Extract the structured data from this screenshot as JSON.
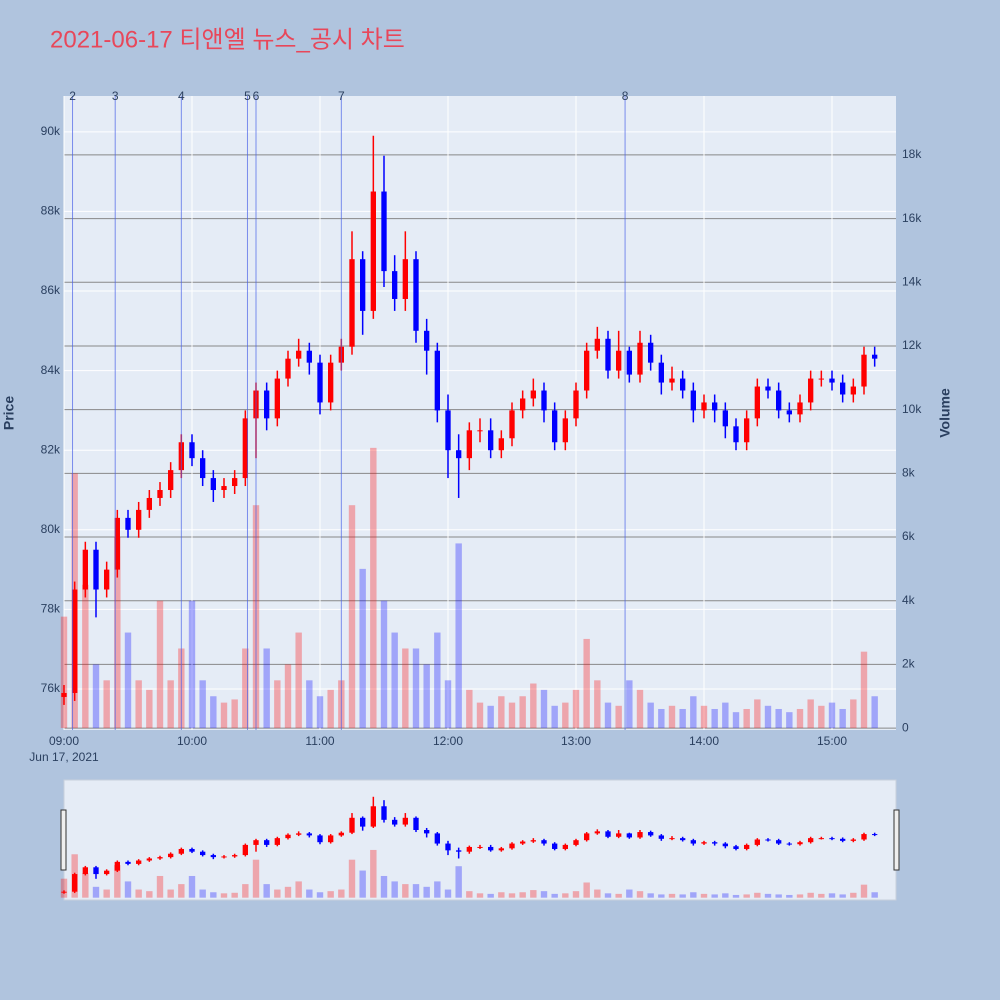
{
  "chart_data": {
    "type": "candlestick",
    "title": "2021-06-17 티앤엘 뉴스_공시 차트",
    "y_label": "Price",
    "y2_label": "Volume",
    "x_date_label": "Jun 17, 2021",
    "increasing_color": "#ff0000",
    "decreasing_color": "#0000ff",
    "x": [
      "2021-06-17 09:00",
      "2021-06-17 09:05",
      "2021-06-17 09:10",
      "2021-06-17 09:15",
      "2021-06-17 09:20",
      "2021-06-17 09:25",
      "2021-06-17 09:30",
      "2021-06-17 09:35",
      "2021-06-17 09:40",
      "2021-06-17 09:45",
      "2021-06-17 09:50",
      "2021-06-17 09:55",
      "2021-06-17 10:00",
      "2021-06-17 10:05",
      "2021-06-17 10:10",
      "2021-06-17 10:15",
      "2021-06-17 10:20",
      "2021-06-17 10:25",
      "2021-06-17 10:30",
      "2021-06-17 10:35",
      "2021-06-17 10:40",
      "2021-06-17 10:45",
      "2021-06-17 10:50",
      "2021-06-17 10:55",
      "2021-06-17 11:00",
      "2021-06-17 11:05",
      "2021-06-17 11:10",
      "2021-06-17 11:15",
      "2021-06-17 11:20",
      "2021-06-17 11:25",
      "2021-06-17 11:30",
      "2021-06-17 11:35",
      "2021-06-17 11:40",
      "2021-06-17 11:45",
      "2021-06-17 11:50",
      "2021-06-17 11:55",
      "2021-06-17 12:00",
      "2021-06-17 12:05",
      "2021-06-17 12:10",
      "2021-06-17 12:15",
      "2021-06-17 12:20",
      "2021-06-17 12:25",
      "2021-06-17 12:30",
      "2021-06-17 12:35",
      "2021-06-17 12:40",
      "2021-06-17 12:45",
      "2021-06-17 12:50",
      "2021-06-17 12:55",
      "2021-06-17 13:00",
      "2021-06-17 13:05",
      "2021-06-17 13:10",
      "2021-06-17 13:15",
      "2021-06-17 13:20",
      "2021-06-17 13:25",
      "2021-06-17 13:30",
      "2021-06-17 13:35",
      "2021-06-17 13:40",
      "2021-06-17 13:45",
      "2021-06-17 13:50",
      "2021-06-17 13:55",
      "2021-06-17 14:00",
      "2021-06-17 14:05",
      "2021-06-17 14:10",
      "2021-06-17 14:15",
      "2021-06-17 14:20",
      "2021-06-17 14:25",
      "2021-06-17 14:30",
      "2021-06-17 14:35",
      "2021-06-17 14:40",
      "2021-06-17 14:45",
      "2021-06-17 14:50",
      "2021-06-17 14:55",
      "2021-06-17 15:00",
      "2021-06-17 15:05",
      "2021-06-17 15:10",
      "2021-06-17 15:15",
      "2021-06-17 15:20"
    ],
    "open": [
      75800,
      75900,
      78500,
      79500,
      78500,
      79000,
      80300,
      80000,
      80500,
      80800,
      81000,
      81500,
      82200,
      81800,
      81300,
      81000,
      81100,
      81300,
      82800,
      83500,
      82800,
      83800,
      84300,
      84500,
      84200,
      83200,
      84200,
      84600,
      86800,
      85500,
      88500,
      86500,
      85800,
      86800,
      85000,
      84500,
      83000,
      82000,
      81800,
      82500,
      82500,
      82000,
      82300,
      83000,
      83300,
      83500,
      83000,
      82200,
      82800,
      83500,
      84500,
      84800,
      84000,
      84500,
      83900,
      84700,
      84200,
      83700,
      83800,
      83500,
      83000,
      83200,
      83000,
      82600,
      82200,
      82800,
      83600,
      83500,
      83000,
      82900,
      83200,
      83800,
      83800,
      83700,
      83400,
      83600,
      84400
    ],
    "high": [
      76100,
      78700,
      79700,
      79700,
      79200,
      80500,
      80500,
      80700,
      81000,
      81200,
      81700,
      82400,
      82400,
      82000,
      81500,
      81300,
      81500,
      83000,
      83700,
      83700,
      84000,
      84500,
      84800,
      84700,
      84400,
      84400,
      84800,
      87500,
      87000,
      89900,
      89400,
      86900,
      87500,
      87000,
      85300,
      84700,
      83400,
      82400,
      82700,
      82800,
      82800,
      82500,
      83200,
      83500,
      83800,
      83700,
      83200,
      83000,
      83700,
      84700,
      85100,
      85000,
      85000,
      84600,
      85000,
      84900,
      84400,
      84100,
      84000,
      83700,
      83400,
      83400,
      83200,
      82800,
      83000,
      83800,
      83800,
      83700,
      83200,
      83400,
      84000,
      84000,
      84000,
      83900,
      83800,
      84600,
      84600
    ],
    "low": [
      75600,
      75700,
      78300,
      77800,
      78300,
      78800,
      79800,
      79800,
      80300,
      80600,
      80800,
      81300,
      81600,
      81100,
      80700,
      80800,
      80900,
      81100,
      81800,
      82500,
      82600,
      83600,
      84100,
      83900,
      82900,
      83000,
      84000,
      84400,
      84900,
      85300,
      86100,
      85500,
      85500,
      84700,
      83900,
      82700,
      81300,
      80800,
      81500,
      82200,
      81800,
      81800,
      82100,
      82800,
      83100,
      82700,
      82000,
      82000,
      82600,
      83300,
      84300,
      83800,
      83800,
      83700,
      83700,
      84000,
      83400,
      83500,
      83300,
      82700,
      82800,
      82700,
      82300,
      82000,
      82000,
      82600,
      83300,
      82800,
      82700,
      82700,
      83000,
      83600,
      83500,
      83200,
      83200,
      83400,
      84100
    ],
    "close": [
      75900,
      78500,
      79500,
      78500,
      79000,
      80300,
      80000,
      80500,
      80800,
      81000,
      81500,
      82200,
      81800,
      81300,
      81000,
      81100,
      81300,
      82800,
      83500,
      82800,
      83800,
      84300,
      84500,
      84200,
      83200,
      84200,
      84600,
      86800,
      85500,
      88500,
      86500,
      85800,
      86800,
      85000,
      84500,
      83000,
      82000,
      81800,
      82500,
      82500,
      82000,
      82300,
      83000,
      83300,
      83500,
      83000,
      82200,
      82800,
      83500,
      84500,
      84800,
      84000,
      84500,
      83900,
      84700,
      84200,
      83700,
      83800,
      83500,
      83000,
      83200,
      83000,
      82600,
      82200,
      82800,
      83600,
      83500,
      83000,
      82900,
      83200,
      83800,
      83800,
      83700,
      83400,
      83600,
      84400,
      84300
    ],
    "volume": [
      3500,
      8000,
      4500,
      2000,
      1500,
      6000,
      3000,
      1500,
      1200,
      4000,
      1500,
      2500,
      4000,
      1500,
      1000,
      800,
      900,
      2500,
      7000,
      2500,
      1500,
      2000,
      3000,
      1500,
      1000,
      1200,
      1500,
      7000,
      5000,
      8800,
      4000,
      3000,
      2500,
      2500,
      2000,
      3000,
      1500,
      5800,
      1200,
      800,
      700,
      1000,
      800,
      1000,
      1400,
      1200,
      700,
      800,
      1200,
      2800,
      1500,
      800,
      700,
      1500,
      1200,
      800,
      600,
      700,
      600,
      1000,
      700,
      600,
      800,
      500,
      600,
      900,
      700,
      600,
      500,
      600,
      900,
      700,
      800,
      600,
      900,
      2400,
      1000
    ],
    "events": [
      {
        "x": "2021-06-17 09:04",
        "label": "2"
      },
      {
        "x": "2021-06-17 09:24",
        "label": "3"
      },
      {
        "x": "2021-06-17 09:55",
        "label": "4"
      },
      {
        "x": "2021-06-17 10:26",
        "label": "5"
      },
      {
        "x": "2021-06-17 10:30",
        "label": "6"
      },
      {
        "x": "2021-06-17 11:10",
        "label": "7"
      },
      {
        "x": "2021-06-17 13:23",
        "label": "8"
      }
    ],
    "xlim": [
      "2021-06-17 09:00",
      "2021-06-17 15:30"
    ],
    "xticks": [
      {
        "value": "2021-06-17 09:00",
        "label": "09:00"
      },
      {
        "value": "2021-06-17 10:00",
        "label": "10:00"
      },
      {
        "value": "2021-06-17 11:00",
        "label": "11:00"
      },
      {
        "value": "2021-06-17 12:00",
        "label": "12:00"
      },
      {
        "value": "2021-06-17 13:00",
        "label": "13:00"
      },
      {
        "value": "2021-06-17 14:00",
        "label": "14:00"
      },
      {
        "value": "2021-06-17 15:00",
        "label": "15:00"
      }
    ],
    "ylim": [
      74970,
      90900
    ],
    "yticks": [
      {
        "value": 76000,
        "label": "76k"
      },
      {
        "value": 78000,
        "label": "78k"
      },
      {
        "value": 80000,
        "label": "80k"
      },
      {
        "value": 82000,
        "label": "82k"
      },
      {
        "value": 84000,
        "label": "84k"
      },
      {
        "value": 86000,
        "label": "86k"
      },
      {
        "value": 88000,
        "label": "88k"
      },
      {
        "value": 90000,
        "label": "90k"
      }
    ],
    "y2lim": [
      -60,
      19850
    ],
    "y2ticks": [
      0,
      {
        "value": 2000,
        "label": "2k"
      },
      {
        "value": 4000,
        "label": "4k"
      },
      {
        "value": 6000,
        "label": "6k"
      },
      {
        "value": 8000,
        "label": "8k"
      },
      {
        "value": 10000,
        "label": "10k"
      },
      {
        "value": 12000,
        "label": "12k"
      },
      {
        "value": 14000,
        "label": "14k"
      },
      {
        "value": 16000,
        "label": "16k"
      },
      {
        "value": 18000,
        "label": "18k"
      }
    ],
    "grid": true,
    "range_slider": true
  }
}
